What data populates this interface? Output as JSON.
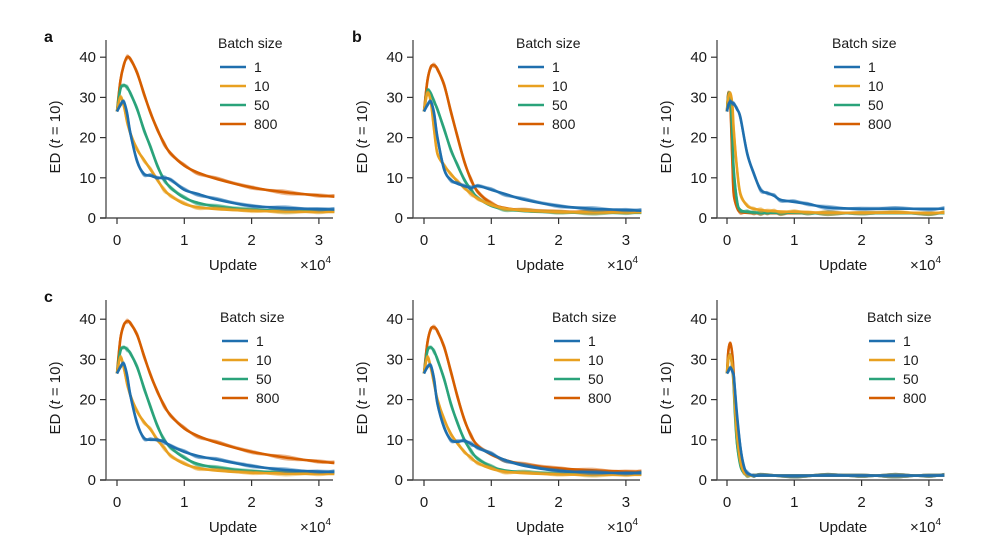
{
  "figure": {
    "colors": {
      "1": "#1f6fae",
      "10": "#e8a020",
      "50": "#2aa37a",
      "800": "#d55e00"
    }
  },
  "chart_data": [
    {
      "type": "line",
      "panel_letter": "a",
      "title": "",
      "xlabel": "Update",
      "x_multiplier": "×10",
      "x_multiplier_exp": "4",
      "ylabel": "ED (t = 10)",
      "xlim": [
        -0.15,
        3.23
      ],
      "ylim": [
        0,
        44
      ],
      "xticks": [
        0,
        1,
        2,
        3
      ],
      "yticks": [
        0,
        10,
        20,
        30,
        40
      ],
      "grid": false,
      "legend": {
        "title": "Batch size",
        "position": "top-right",
        "entries": [
          "1",
          "10",
          "50",
          "800"
        ]
      },
      "x": [
        0,
        0.05,
        0.1,
        0.15,
        0.2,
        0.3,
        0.4,
        0.5,
        0.6,
        0.7,
        0.8,
        1.0,
        1.2,
        1.5,
        2.0,
        2.5,
        3.0,
        3.23
      ],
      "series": [
        {
          "name": "1",
          "values": [
            26.5,
            28,
            29,
            26,
            21,
            14,
            11,
            10.5,
            10,
            10,
            9.5,
            7,
            6,
            4.5,
            3,
            2.5,
            2.2,
            2.1
          ]
        },
        {
          "name": "10",
          "values": [
            26.5,
            30,
            28,
            24,
            21,
            17,
            14.5,
            12,
            9.5,
            7,
            5.5,
            3.5,
            2.7,
            2.2,
            1.8,
            1.6,
            1.5,
            1.5
          ]
        },
        {
          "name": "50",
          "values": [
            26.5,
            32,
            33,
            32.5,
            31,
            27,
            22,
            17.5,
            13,
            9.5,
            7.5,
            5,
            3.8,
            2.8,
            2.1,
            1.8,
            1.7,
            1.7
          ]
        },
        {
          "name": "800",
          "values": [
            26.5,
            34,
            38,
            40,
            39.5,
            36,
            31,
            26,
            22,
            18.5,
            16,
            13,
            11.3,
            9.6,
            7.6,
            6.4,
            5.6,
            5.3
          ]
        }
      ]
    },
    {
      "type": "line",
      "panel_letter": "b",
      "title": "",
      "xlabel": "Update",
      "x_multiplier": "×10",
      "x_multiplier_exp": "4",
      "ylabel": "ED (t = 10)",
      "xlim": [
        -0.15,
        3.23
      ],
      "ylim": [
        0,
        44
      ],
      "xticks": [
        0,
        1,
        2,
        3
      ],
      "yticks": [
        0,
        10,
        20,
        30,
        40
      ],
      "grid": false,
      "legend": {
        "title": "Batch size",
        "position": "top-right",
        "entries": [
          "1",
          "10",
          "50",
          "800"
        ]
      },
      "x": [
        0,
        0.05,
        0.1,
        0.15,
        0.2,
        0.3,
        0.4,
        0.5,
        0.6,
        0.7,
        0.8,
        1.0,
        1.2,
        1.5,
        2.0,
        2.5,
        3.0,
        3.23
      ],
      "series": [
        {
          "name": "1",
          "values": [
            26.5,
            28,
            29,
            26,
            20,
            12,
            9.5,
            8.5,
            8,
            7.5,
            8,
            7,
            6,
            4.5,
            3,
            2.3,
            2,
            1.8
          ]
        },
        {
          "name": "10",
          "values": [
            26.5,
            31,
            29,
            22,
            16,
            13,
            11,
            9,
            7.5,
            6,
            4.8,
            3.2,
            2.4,
            1.8,
            1.5,
            1.4,
            1.4,
            1.4
          ]
        },
        {
          "name": "50",
          "values": [
            26.5,
            31.5,
            31,
            29,
            27,
            22,
            17,
            13,
            9.5,
            7,
            5,
            3,
            2.2,
            1.7,
            1.4,
            1.3,
            1.3,
            1.3
          ]
        },
        {
          "name": "800",
          "values": [
            26.5,
            34,
            37.5,
            38,
            37,
            33,
            26.5,
            20,
            14,
            9.5,
            6.5,
            3.6,
            2.5,
            1.9,
            1.6,
            1.5,
            1.5,
            1.5
          ]
        }
      ]
    },
    {
      "type": "line",
      "panel_letter": "",
      "title": "",
      "xlabel": "Update",
      "x_multiplier": "×10",
      "x_multiplier_exp": "4",
      "ylabel": "ED (t = 10)",
      "xlim": [
        -0.15,
        3.23
      ],
      "ylim": [
        0,
        44
      ],
      "xticks": [
        0,
        1,
        2,
        3
      ],
      "yticks": [
        0,
        10,
        20,
        30,
        40
      ],
      "grid": false,
      "legend": {
        "title": "Batch size",
        "position": "top-right",
        "entries": [
          "1",
          "10",
          "50",
          "800"
        ]
      },
      "x": [
        0,
        0.02,
        0.05,
        0.08,
        0.1,
        0.15,
        0.2,
        0.3,
        0.4,
        0.5,
        0.6,
        0.7,
        0.8,
        1.0,
        1.2,
        1.5,
        2.0,
        2.5,
        3.0,
        3.23
      ],
      "series": [
        {
          "name": "1",
          "values": [
            26.5,
            28,
            29,
            28.5,
            28.5,
            27,
            25,
            16,
            11,
            7,
            6.2,
            5.5,
            4.5,
            4,
            3.5,
            2.6,
            2.3,
            2.3,
            2.3,
            2.3
          ]
        },
        {
          "name": "10",
          "values": [
            26.5,
            30,
            31,
            28,
            22,
            12,
            6,
            3,
            2.3,
            2,
            1.8,
            1.7,
            1.6,
            1.5,
            1.4,
            1.3,
            1.3,
            1.3,
            1.3,
            1.3
          ]
        },
        {
          "name": "50",
          "values": [
            26.5,
            30.5,
            30,
            20,
            12,
            4,
            2,
            1.5,
            1.4,
            1.3,
            1.3,
            1.3,
            1.3,
            1.3,
            1.2,
            1.2,
            1.2,
            1.2,
            1.2,
            1.2
          ]
        },
        {
          "name": "800",
          "values": [
            26.5,
            31,
            28,
            14,
            6,
            2.5,
            1.5,
            1.3,
            1.2,
            1.2,
            1.2,
            1.2,
            1.2,
            1.2,
            1.2,
            1.2,
            1.2,
            1.2,
            1.2,
            1.2
          ]
        }
      ]
    },
    {
      "type": "line",
      "panel_letter": "c",
      "title": "",
      "xlabel": "Update",
      "x_multiplier": "×10",
      "x_multiplier_exp": "4",
      "ylabel": "ED (t = 10)",
      "xlim": [
        -0.15,
        3.23
      ],
      "ylim": [
        0,
        44
      ],
      "xticks": [
        0,
        1,
        2,
        3
      ],
      "yticks": [
        0,
        10,
        20,
        30,
        40
      ],
      "grid": false,
      "legend": {
        "title": "Batch size",
        "position": "top-right",
        "entries": [
          "1",
          "10",
          "50",
          "800"
        ]
      },
      "x": [
        0,
        0.05,
        0.1,
        0.15,
        0.2,
        0.3,
        0.4,
        0.5,
        0.6,
        0.7,
        0.8,
        1.0,
        1.2,
        1.5,
        2.0,
        2.5,
        3.0,
        3.23
      ],
      "series": [
        {
          "name": "1",
          "values": [
            26.5,
            28,
            29,
            26,
            21,
            14,
            10.5,
            10,
            10,
            9.5,
            8.5,
            7,
            6,
            5,
            3.5,
            2.5,
            2.1,
            2
          ]
        },
        {
          "name": "10",
          "values": [
            26.5,
            30.5,
            28,
            24,
            21,
            17,
            14.5,
            12.5,
            10,
            8,
            6,
            4,
            3,
            2.3,
            1.8,
            1.6,
            1.5,
            1.5
          ]
        },
        {
          "name": "50",
          "values": [
            26.5,
            32,
            33,
            32.5,
            31.5,
            28,
            23,
            18,
            13.5,
            10,
            8,
            5.5,
            4,
            3,
            2.2,
            1.9,
            1.8,
            1.8
          ]
        },
        {
          "name": "800",
          "values": [
            26.5,
            35,
            38.5,
            39.5,
            39,
            36,
            31,
            26,
            22,
            18.5,
            16,
            12.8,
            11,
            9.2,
            7,
            5.6,
            4.6,
            4.2
          ]
        }
      ]
    },
    {
      "type": "line",
      "panel_letter": "",
      "title": "",
      "xlabel": "Update",
      "x_multiplier": "×10",
      "x_multiplier_exp": "4",
      "ylabel": "ED (t = 10)",
      "xlim": [
        -0.15,
        3.23
      ],
      "ylim": [
        0,
        44
      ],
      "xticks": [
        0,
        1,
        2,
        3
      ],
      "yticks": [
        0,
        10,
        20,
        30,
        40
      ],
      "grid": false,
      "legend": {
        "title": "Batch size",
        "position": "top-right",
        "entries": [
          "1",
          "10",
          "50",
          "800"
        ]
      },
      "x": [
        0,
        0.05,
        0.1,
        0.15,
        0.2,
        0.3,
        0.4,
        0.5,
        0.6,
        0.7,
        0.8,
        1.0,
        1.2,
        1.5,
        2.0,
        2.5,
        3.0,
        3.23
      ],
      "series": [
        {
          "name": "1",
          "values": [
            26.5,
            28,
            28.5,
            25,
            19,
            13,
            10,
            9.5,
            9.8,
            9,
            8,
            6.5,
            5,
            3.5,
            2.3,
            1.9,
            1.7,
            1.7
          ]
        },
        {
          "name": "10",
          "values": [
            26.5,
            30.5,
            28,
            24,
            20,
            15,
            11.5,
            9,
            7,
            5.5,
            4.2,
            2.8,
            2.1,
            1.7,
            1.4,
            1.3,
            1.3,
            1.3
          ]
        },
        {
          "name": "50",
          "values": [
            26.5,
            32,
            33,
            32,
            30,
            25,
            19,
            14,
            10,
            7.2,
            5.3,
            3.3,
            2.4,
            1.9,
            1.6,
            1.5,
            1.5,
            1.5
          ]
        },
        {
          "name": "800",
          "values": [
            26.5,
            34,
            37.5,
            38,
            37,
            33,
            27,
            20.5,
            15,
            11,
            8.5,
            6.3,
            5,
            3.8,
            2.9,
            2.4,
            2.1,
            2
          ]
        }
      ]
    },
    {
      "type": "line",
      "panel_letter": "",
      "title": "",
      "xlabel": "Update",
      "x_multiplier": "×10",
      "x_multiplier_exp": "4",
      "ylabel": "ED (t = 10)",
      "xlim": [
        -0.15,
        3.23
      ],
      "ylim": [
        0,
        44
      ],
      "xticks": [
        0,
        1,
        2,
        3
      ],
      "yticks": [
        0,
        10,
        20,
        30,
        40
      ],
      "grid": false,
      "legend": {
        "title": "Batch size",
        "position": "top-right",
        "entries": [
          "1",
          "10",
          "50",
          "800"
        ]
      },
      "x": [
        0,
        0.02,
        0.05,
        0.08,
        0.1,
        0.12,
        0.15,
        0.2,
        0.25,
        0.3,
        0.4,
        0.5,
        1.0,
        1.5,
        2.0,
        2.5,
        3.0,
        3.23
      ],
      "series": [
        {
          "name": "1",
          "values": [
            26.5,
            27,
            28,
            27,
            26,
            22,
            16,
            8,
            3.5,
            1.8,
            1.1,
            1.1,
            1.1,
            1.1,
            1.1,
            1.1,
            1.1,
            1.1
          ]
        },
        {
          "name": "10",
          "values": [
            26.5,
            30,
            31,
            28,
            24,
            18,
            11,
            4.5,
            2,
            1.3,
            1.1,
            1.1,
            1.1,
            1.1,
            1.1,
            1.1,
            1.1,
            1.1
          ]
        },
        {
          "name": "50",
          "values": [
            26.5,
            30,
            31,
            28,
            23,
            16,
            9,
            3.5,
            1.8,
            1.2,
            1.1,
            1.1,
            1.1,
            1.1,
            1.1,
            1.1,
            1.1,
            1.1
          ]
        },
        {
          "name": "800",
          "values": [
            26.5,
            32,
            34,
            31,
            26,
            19,
            11,
            4.5,
            2,
            1.3,
            1.1,
            1.1,
            1.1,
            1.1,
            1.1,
            1.1,
            1.1,
            1.1
          ]
        }
      ]
    }
  ]
}
